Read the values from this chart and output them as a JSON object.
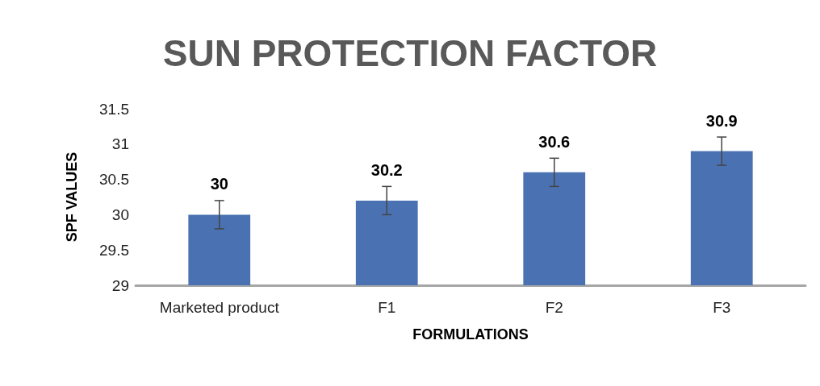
{
  "chart_data": {
    "type": "bar",
    "title": "SUN PROTECTION FACTOR",
    "xlabel": "FORMULATIONS",
    "ylabel": "SPF VALUES",
    "categories": [
      "Marketed product",
      "F1",
      "F2",
      "F3"
    ],
    "values": [
      30,
      30.2,
      30.6,
      30.9
    ],
    "errors": [
      0.2,
      0.2,
      0.2,
      0.2
    ],
    "color": "#4a72b2",
    "ylim": [
      29,
      31.5
    ],
    "yticks": [
      29,
      29.5,
      30,
      30.5,
      31,
      31.5
    ],
    "grid": false,
    "data_labels": true
  }
}
